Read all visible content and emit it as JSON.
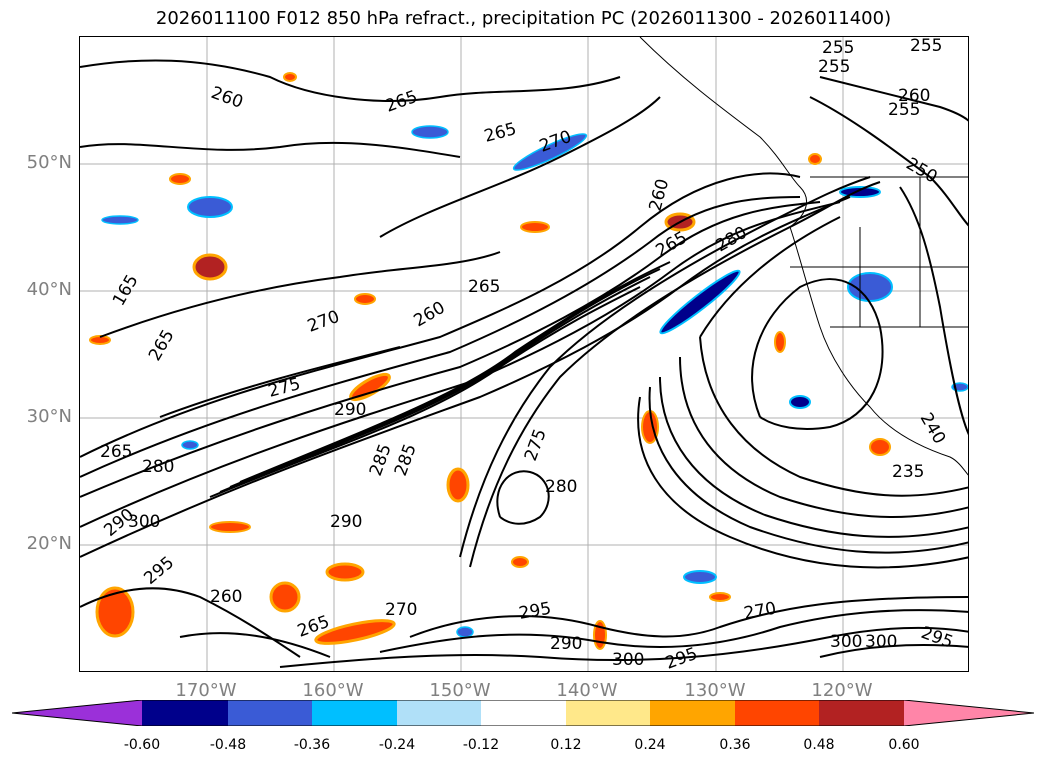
{
  "title": "2026011100 F012 850 hPa refract., precipitation PC (2026011300 - 2026011400)",
  "lat_labels": [
    "50°N",
    "40°N",
    "30°N",
    "20°N"
  ],
  "lon_labels": [
    "170°W",
    "160°W",
    "150°W",
    "140°W",
    "130°W",
    "120°W"
  ],
  "contour_labels": [
    "255",
    "255",
    "255",
    "260",
    "255",
    "250",
    "260",
    "265",
    "265",
    "270",
    "165",
    "265",
    "270",
    "260",
    "265",
    "275",
    "290",
    "265",
    "280",
    "300",
    "290",
    "295",
    "260",
    "270",
    "265",
    "280",
    "275",
    "285",
    "290",
    "270",
    "295",
    "290",
    "300",
    "295",
    "300",
    "235",
    "240",
    "260",
    "265",
    "280",
    "285",
    "300",
    "295"
  ],
  "colorbar": {
    "ticks": [
      "-0.60",
      "-0.48",
      "-0.36",
      "-0.24",
      "-0.12",
      "0.12",
      "0.24",
      "0.36",
      "0.48",
      "0.60"
    ],
    "colors": [
      "#9b30d9",
      "#00008b",
      "#3a5bd6",
      "#00bfff",
      "#b0e0f8",
      "#ffffff",
      "#ffe88a",
      "#ffa500",
      "#ff4500",
      "#b22222",
      "#ff85a8"
    ]
  }
}
